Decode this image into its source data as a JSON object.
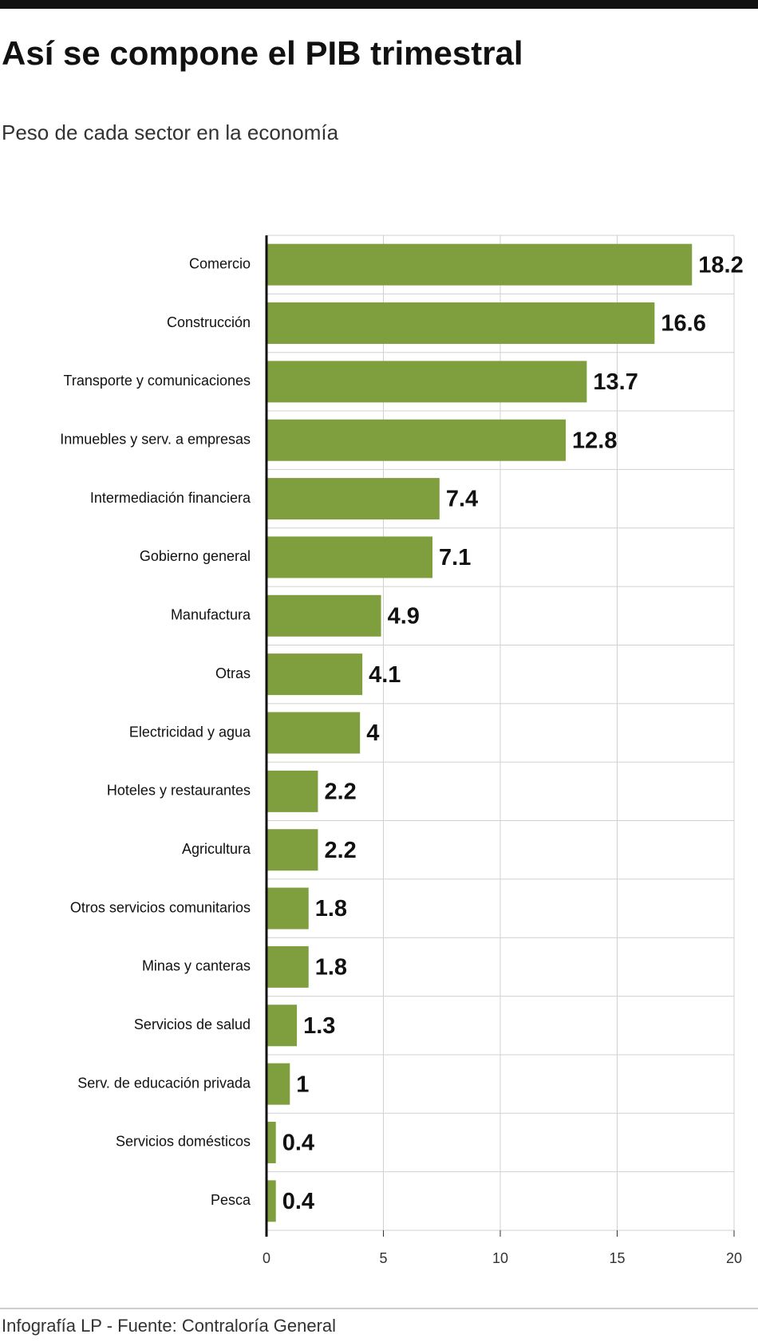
{
  "chart_data": {
    "type": "hbar",
    "title": "Así se compone el PIB trimestral",
    "subtitle": "Peso de cada sector en la economía",
    "source": "Infografía LP - Fuente: Contraloría General",
    "categories": [
      "Comercio",
      "Construcción",
      "Transporte y comunicaciones",
      "Inmuebles y serv. a empresas",
      "Intermediación financiera",
      "Gobierno general",
      "Manufactura",
      "Otras",
      "Electricidad y agua",
      "Hoteles y restaurantes",
      "Agricultura",
      "Otros servicios comunitarios",
      "Minas y canteras",
      "Servicios de salud",
      "Serv. de educación privada",
      "Servicios domésticos",
      "Pesca"
    ],
    "values": [
      18.2,
      16.6,
      13.7,
      12.8,
      7.4,
      7.1,
      4.9,
      4.1,
      4,
      2.2,
      2.2,
      1.8,
      1.8,
      1.3,
      1,
      0.4,
      0.4
    ],
    "color": "#7f9f3f",
    "xlim": [
      0,
      20
    ],
    "xticks": [
      0,
      5,
      10,
      15,
      20
    ],
    "grid": true
  }
}
